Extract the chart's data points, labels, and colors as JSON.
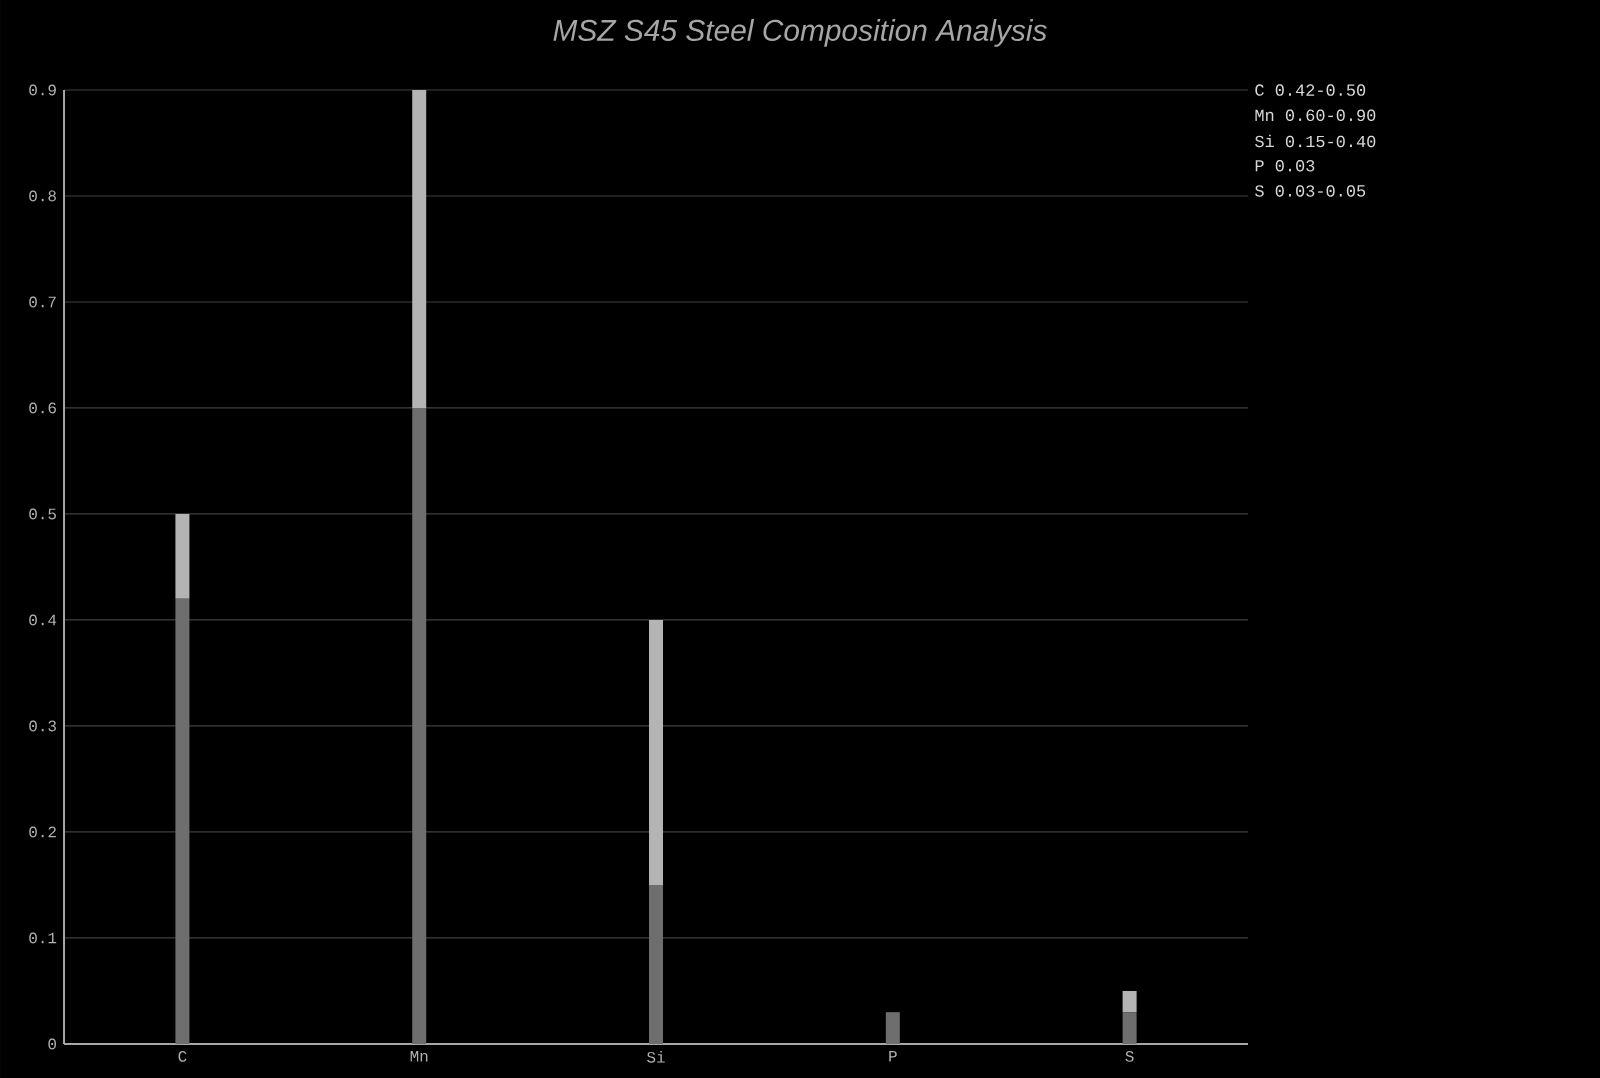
{
  "chart_data": {
    "type": "bar",
    "title": "MSZ S45 Steel Composition Analysis",
    "stacked": true,
    "categories": [
      "C",
      "Mn",
      "Si",
      "P",
      "S"
    ],
    "series": [
      {
        "color": "#6e6e6e",
        "values": [
          0.42,
          0.6,
          0.15,
          0.03,
          0.03
        ]
      },
      {
        "color": "#b4b4b4",
        "values": [
          0.08,
          0.3,
          0.25,
          0,
          0.02
        ]
      }
    ],
    "ylim": [
      0,
      0.9
    ],
    "yticks": [
      0,
      0.1,
      0.2,
      0.3,
      0.4,
      0.5,
      0.6,
      0.7,
      0.8,
      0.9
    ],
    "grid": "y",
    "annotations": [
      "C  0.42-0.50",
      "Mn 0.60-0.90",
      "Si 0.15-0.40",
      "P  0.03",
      "S  0.03-0.05"
    ]
  }
}
